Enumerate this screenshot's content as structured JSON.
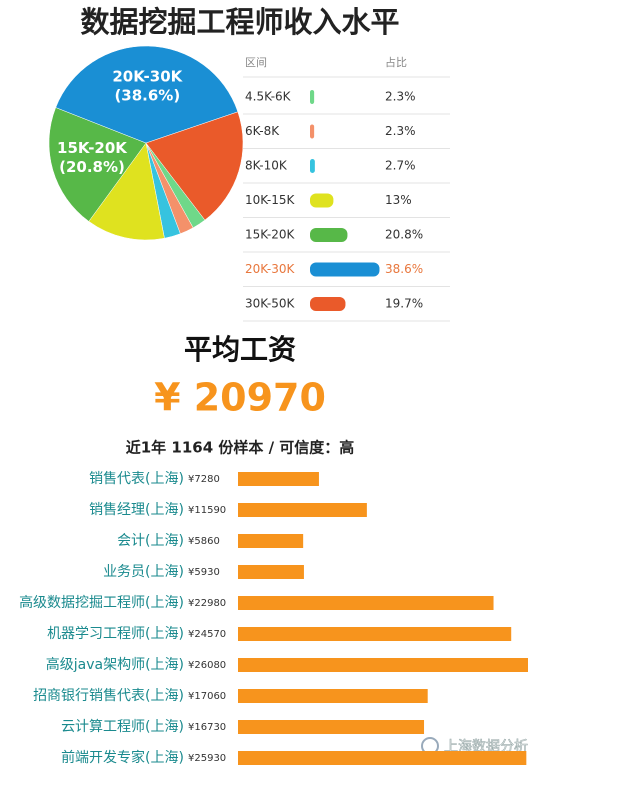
{
  "title": "数据挖掘工程师收入水平",
  "chart_data": [
    {
      "type": "pie",
      "column_headers": [
        "区间",
        "占比"
      ],
      "categories": [
        "4.5K-6K",
        "6K-8K",
        "8K-10K",
        "10K-15K",
        "15K-20K",
        "20K-30K",
        "30K-50K"
      ],
      "values": [
        2.3,
        2.3,
        2.7,
        13,
        20.8,
        38.6,
        19.7
      ],
      "value_labels": [
        "2.3%",
        "2.3%",
        "2.7%",
        "13%",
        "20.8%",
        "38.6%",
        "19.7%"
      ],
      "slice_labels": [
        null,
        null,
        null,
        null,
        "(20.8%)",
        "(38.6%)",
        null
      ],
      "colors": [
        "#6fd889",
        "#f4916a",
        "#36c3df",
        "#dfe21f",
        "#57b848",
        "#1a8fd4",
        "#ea5a2a"
      ],
      "highlight": "20K-30K",
      "highlight_color": "#e8773d"
    },
    {
      "type": "bar",
      "orientation": "horizontal",
      "categories": [
        "销售代表(上海)",
        "销售经理(上海)",
        "会计(上海)",
        "业务员(上海)",
        "高级数据挖掘工程师(上海)",
        "机器学习工程师(上海)",
        "高级java架构师(上海)",
        "招商银行销售代表(上海)",
        "云计算工程师(上海)",
        "前端开发专家(上海)"
      ],
      "values": [
        7280,
        11590,
        5860,
        5930,
        22980,
        24570,
        26080,
        17060,
        16730,
        25930
      ],
      "value_labels": [
        "¥7280",
        "¥11590",
        "¥5860",
        "¥5930",
        "¥22980",
        "¥24570",
        "¥26080",
        "¥17060",
        "¥16730",
        "¥25930"
      ],
      "color": "#f7941d"
    }
  ],
  "summary": {
    "heading": "平均工资",
    "value": "¥ 20970",
    "note": "近1年 1164 份样本 / 可信度：高"
  },
  "watermark": "上海数据分析"
}
